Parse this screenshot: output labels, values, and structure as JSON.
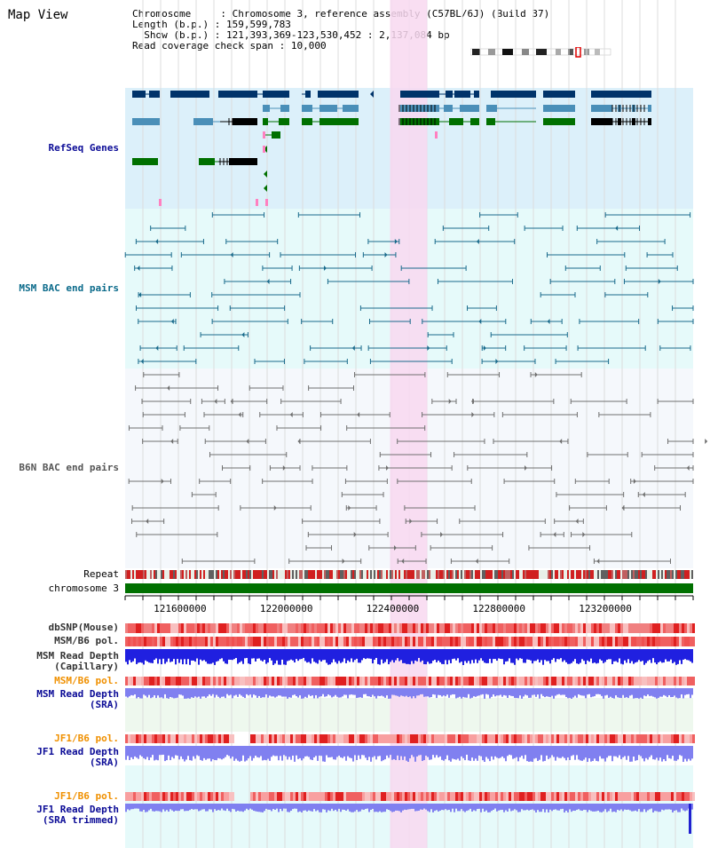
{
  "title": "Map View",
  "info": {
    "chromosome_label": "Chromosome",
    "chromosome_value": "Chromosome 3, reference assembly (C57BL/6J) (Build 37)",
    "length_label": "Length (b.p.)",
    "length_value": "159,599,783",
    "show_label": "Show (b.p.)",
    "show_value": "121,393,369-123,530,452 : 2,137,084 bp",
    "span_label": "Read coverage check span",
    "span_value": "10,000"
  },
  "tracks": {
    "refseq": "RefSeq Genes",
    "msm_bac": "MSM BAC end pairs",
    "b6n_bac": "B6N BAC end pairs",
    "repeat": "Repeat",
    "chromosome": "chromosome 3",
    "dbsnp": "dbSNP(Mouse)",
    "msm_b6_pol_1": "MSM/B6 pol.",
    "msm_depth_cap_1": "MSM Read Depth",
    "msm_depth_cap_2": "(Capillary)",
    "msm_b6_pol_2": "MSM/B6 pol.",
    "msm_depth_sra_1": "MSM Read Depth",
    "msm_depth_sra_2": "(SRA)",
    "jf1_pol_1": "JF1/B6 pol.",
    "jf1_depth_sra_1": "JF1 Read Depth",
    "jf1_depth_sra_2": "(SRA)",
    "jf1_pol_2": "JF1/B6 pol.",
    "jf1_depth_trim_1": "JF1 Read Depth",
    "jf1_depth_trim_2": "(SRA trimmed)"
  },
  "axis": {
    "ticks": [
      "121600000",
      "122000000",
      "122400000",
      "122800000",
      "123200000"
    ],
    "tick_values": [
      121600000,
      122000000,
      122400000,
      122800000,
      123200000
    ],
    "start": 121393369,
    "end": 123530452,
    "highlight_start": 122390000,
    "highlight_end": 122530000
  },
  "colors": {
    "refseq_bg": "#dcf0fa",
    "msm_bg": "#e6fafa",
    "b6n_bg": "#f5f8fc",
    "highlight": "#f8d8f0",
    "gene_navy": "#00336a",
    "gene_blue": "#4a8fb8",
    "gene_green": "#007000",
    "bac_teal": "#1a6b8c",
    "bac_gray": "#707070",
    "chrom_green": "#007000",
    "depth_blue": "#2020e0",
    "depth_light": "#8080f0",
    "label_orange": "#f09000"
  }
}
